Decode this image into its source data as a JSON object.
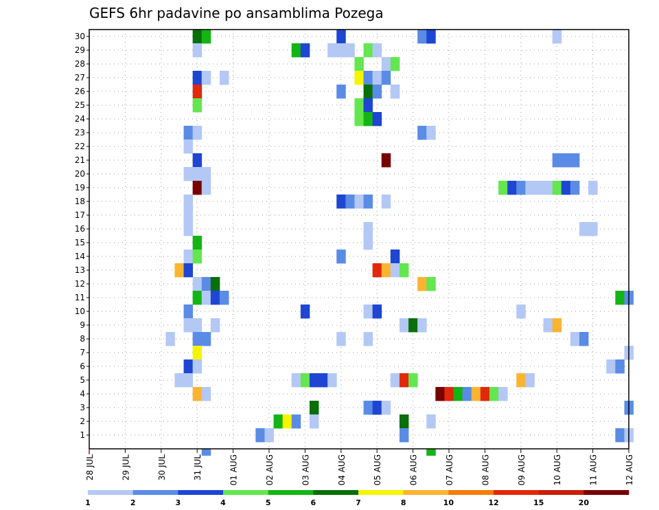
{
  "chart_data": {
    "type": "heatmap",
    "title": "GEFS 6hr padavine po ansamblima Pozega",
    "xlabel": "",
    "ylabel": "",
    "x_ticks": [
      "28 JUL",
      "29 JUL",
      "30 JUL",
      "31 JUL",
      "01 AUG",
      "02 AUG",
      "03 AUG",
      "04 AUG",
      "05 AUG",
      "06 AUG",
      "07 AUG",
      "08 AUG",
      "09 AUG",
      "10 AUG",
      "11 AUG",
      "12 AUG"
    ],
    "x_unit": "6-hour step from 28 JUL 00Z",
    "y_ticks": [
      1,
      2,
      3,
      4,
      5,
      6,
      7,
      8,
      9,
      10,
      11,
      12,
      13,
      14,
      15,
      16,
      17,
      18,
      19,
      20,
      21,
      22,
      23,
      24,
      25,
      26,
      27,
      28,
      29,
      30
    ],
    "xlim": [
      0,
      60
    ],
    "ylim": [
      0,
      30.5
    ],
    "grid": true,
    "legend": {
      "placement": "bottom",
      "ticks": [
        "1",
        "2",
        "3",
        "4",
        "5",
        "6",
        "7",
        "8",
        "10",
        "12",
        "15",
        "20"
      ],
      "colors": [
        "#b4c8f5",
        "#5a8ce6",
        "#1e46d2",
        "#64e650",
        "#14b414",
        "#0a6e0a",
        "#f5f500",
        "#fab432",
        "#f57d0a",
        "#e1280a",
        "#c81e0a",
        "#780000"
      ]
    },
    "cells": [
      {
        "member": 30,
        "step": 12,
        "class": 5
      },
      {
        "member": 30,
        "step": 13,
        "class": 4
      },
      {
        "member": 30,
        "step": 28,
        "class": 2
      },
      {
        "member": 30,
        "step": 37,
        "class": 1
      },
      {
        "member": 30,
        "step": 38,
        "class": 2
      },
      {
        "member": 30,
        "step": 52,
        "class": 0
      },
      {
        "member": 29,
        "step": 12,
        "class": 0
      },
      {
        "member": 29,
        "step": 23,
        "class": 4
      },
      {
        "member": 29,
        "step": 24,
        "class": 2
      },
      {
        "member": 29,
        "step": 27,
        "class": 0
      },
      {
        "member": 29,
        "step": 28,
        "class": 0
      },
      {
        "member": 29,
        "step": 29,
        "class": 0
      },
      {
        "member": 29,
        "step": 31,
        "class": 3
      },
      {
        "member": 29,
        "step": 32,
        "class": 0
      },
      {
        "member": 28,
        "step": 30,
        "class": 3
      },
      {
        "member": 28,
        "step": 33,
        "class": 0
      },
      {
        "member": 28,
        "step": 34,
        "class": 3
      },
      {
        "member": 27,
        "step": 12,
        "class": 2
      },
      {
        "member": 27,
        "step": 13,
        "class": 0
      },
      {
        "member": 27,
        "step": 15,
        "class": 0
      },
      {
        "member": 27,
        "step": 30,
        "class": 6
      },
      {
        "member": 27,
        "step": 31,
        "class": 1
      },
      {
        "member": 27,
        "step": 32,
        "class": 0
      },
      {
        "member": 27,
        "step": 33,
        "class": 1
      },
      {
        "member": 26,
        "step": 12,
        "class": 9
      },
      {
        "member": 26,
        "step": 28,
        "class": 1
      },
      {
        "member": 26,
        "step": 31,
        "class": 5
      },
      {
        "member": 26,
        "step": 32,
        "class": 1
      },
      {
        "member": 26,
        "step": 34,
        "class": 0
      },
      {
        "member": 25,
        "step": 12,
        "class": 3
      },
      {
        "member": 25,
        "step": 30,
        "class": 3
      },
      {
        "member": 25,
        "step": 31,
        "class": 2
      },
      {
        "member": 24,
        "step": 30,
        "class": 3
      },
      {
        "member": 24,
        "step": 31,
        "class": 4
      },
      {
        "member": 24,
        "step": 32,
        "class": 2
      },
      {
        "member": 23,
        "step": 11,
        "class": 1
      },
      {
        "member": 23,
        "step": 12,
        "class": 0
      },
      {
        "member": 23,
        "step": 37,
        "class": 1
      },
      {
        "member": 23,
        "step": 38,
        "class": 0
      },
      {
        "member": 22,
        "step": 11,
        "class": 0
      },
      {
        "member": 21,
        "step": 12,
        "class": 2
      },
      {
        "member": 21,
        "step": 33,
        "class": 11
      },
      {
        "member": 21,
        "step": 52,
        "class": 1
      },
      {
        "member": 21,
        "step": 53,
        "class": 1
      },
      {
        "member": 21,
        "step": 54,
        "class": 1
      },
      {
        "member": 20,
        "step": 11,
        "class": 0
      },
      {
        "member": 20,
        "step": 12,
        "class": 0
      },
      {
        "member": 20,
        "step": 13,
        "class": 0
      },
      {
        "member": 19,
        "step": 12,
        "class": 11
      },
      {
        "member": 19,
        "step": 13,
        "class": 0
      },
      {
        "member": 19,
        "step": 46,
        "class": 3
      },
      {
        "member": 19,
        "step": 47,
        "class": 2
      },
      {
        "member": 19,
        "step": 48,
        "class": 1
      },
      {
        "member": 19,
        "step": 49,
        "class": 0
      },
      {
        "member": 19,
        "step": 50,
        "class": 0
      },
      {
        "member": 19,
        "step": 51,
        "class": 0
      },
      {
        "member": 19,
        "step": 52,
        "class": 3
      },
      {
        "member": 19,
        "step": 53,
        "class": 2
      },
      {
        "member": 19,
        "step": 54,
        "class": 1
      },
      {
        "member": 19,
        "step": 56,
        "class": 0
      },
      {
        "member": 18,
        "step": 11,
        "class": 0
      },
      {
        "member": 18,
        "step": 28,
        "class": 2
      },
      {
        "member": 18,
        "step": 29,
        "class": 1
      },
      {
        "member": 18,
        "step": 30,
        "class": 0
      },
      {
        "member": 18,
        "step": 31,
        "class": 1
      },
      {
        "member": 18,
        "step": 33,
        "class": 0
      },
      {
        "member": 17,
        "step": 11,
        "class": 0
      },
      {
        "member": 16,
        "step": 11,
        "class": 0
      },
      {
        "member": 16,
        "step": 31,
        "class": 0
      },
      {
        "member": 16,
        "step": 55,
        "class": 0
      },
      {
        "member": 16,
        "step": 56,
        "class": 0
      },
      {
        "member": 15,
        "step": 12,
        "class": 4
      },
      {
        "member": 15,
        "step": 31,
        "class": 0
      },
      {
        "member": 14,
        "step": 11,
        "class": 0
      },
      {
        "member": 14,
        "step": 12,
        "class": 3
      },
      {
        "member": 14,
        "step": 28,
        "class": 1
      },
      {
        "member": 14,
        "step": 34,
        "class": 2
      },
      {
        "member": 13,
        "step": 10,
        "class": 7
      },
      {
        "member": 13,
        "step": 11,
        "class": 2
      },
      {
        "member": 13,
        "step": 32,
        "class": 9
      },
      {
        "member": 13,
        "step": 33,
        "class": 7
      },
      {
        "member": 13,
        "step": 34,
        "class": 0
      },
      {
        "member": 13,
        "step": 35,
        "class": 3
      },
      {
        "member": 12,
        "step": 12,
        "class": 0
      },
      {
        "member": 12,
        "step": 13,
        "class": 1
      },
      {
        "member": 12,
        "step": 14,
        "class": 5
      },
      {
        "member": 12,
        "step": 37,
        "class": 7
      },
      {
        "member": 12,
        "step": 38,
        "class": 3
      },
      {
        "member": 11,
        "step": 12,
        "class": 4
      },
      {
        "member": 11,
        "step": 13,
        "class": 0
      },
      {
        "member": 11,
        "step": 14,
        "class": 2
      },
      {
        "member": 11,
        "step": 15,
        "class": 1
      },
      {
        "member": 11,
        "step": 59,
        "class": 4
      },
      {
        "member": 11,
        "step": 60,
        "class": 1
      },
      {
        "member": 10,
        "step": 11,
        "class": 1
      },
      {
        "member": 10,
        "step": 24,
        "class": 2
      },
      {
        "member": 10,
        "step": 31,
        "class": 0
      },
      {
        "member": 10,
        "step": 32,
        "class": 2
      },
      {
        "member": 10,
        "step": 48,
        "class": 0
      },
      {
        "member": 9,
        "step": 11,
        "class": 0
      },
      {
        "member": 9,
        "step": 12,
        "class": 0
      },
      {
        "member": 9,
        "step": 14,
        "class": 0
      },
      {
        "member": 9,
        "step": 35,
        "class": 0
      },
      {
        "member": 9,
        "step": 36,
        "class": 5
      },
      {
        "member": 9,
        "step": 37,
        "class": 0
      },
      {
        "member": 9,
        "step": 51,
        "class": 0
      },
      {
        "member": 9,
        "step": 52,
        "class": 7
      },
      {
        "member": 8,
        "step": 9,
        "class": 0
      },
      {
        "member": 8,
        "step": 12,
        "class": 1
      },
      {
        "member": 8,
        "step": 13,
        "class": 1
      },
      {
        "member": 8,
        "step": 28,
        "class": 0
      },
      {
        "member": 8,
        "step": 31,
        "class": 0
      },
      {
        "member": 8,
        "step": 54,
        "class": 0
      },
      {
        "member": 8,
        "step": 55,
        "class": 1
      },
      {
        "member": 7,
        "step": 12,
        "class": 6
      },
      {
        "member": 7,
        "step": 60,
        "class": 0
      },
      {
        "member": 6,
        "step": 11,
        "class": 2
      },
      {
        "member": 6,
        "step": 12,
        "class": 0
      },
      {
        "member": 6,
        "step": 58,
        "class": 0
      },
      {
        "member": 6,
        "step": 59,
        "class": 1
      },
      {
        "member": 5,
        "step": 10,
        "class": 0
      },
      {
        "member": 5,
        "step": 11,
        "class": 0
      },
      {
        "member": 5,
        "step": 23,
        "class": 0
      },
      {
        "member": 5,
        "step": 24,
        "class": 3
      },
      {
        "member": 5,
        "step": 25,
        "class": 2
      },
      {
        "member": 5,
        "step": 26,
        "class": 2
      },
      {
        "member": 5,
        "step": 27,
        "class": 0
      },
      {
        "member": 5,
        "step": 34,
        "class": 0
      },
      {
        "member": 5,
        "step": 35,
        "class": 9
      },
      {
        "member": 5,
        "step": 36,
        "class": 3
      },
      {
        "member": 5,
        "step": 48,
        "class": 7
      },
      {
        "member": 5,
        "step": 49,
        "class": 0
      },
      {
        "member": 4,
        "step": 12,
        "class": 7
      },
      {
        "member": 4,
        "step": 13,
        "class": 0
      },
      {
        "member": 4,
        "step": 39,
        "class": 11
      },
      {
        "member": 4,
        "step": 40,
        "class": 9
      },
      {
        "member": 4,
        "step": 41,
        "class": 4
      },
      {
        "member": 4,
        "step": 42,
        "class": 1
      },
      {
        "member": 4,
        "step": 43,
        "class": 7
      },
      {
        "member": 4,
        "step": 44,
        "class": 9
      },
      {
        "member": 4,
        "step": 45,
        "class": 3
      },
      {
        "member": 4,
        "step": 46,
        "class": 0
      },
      {
        "member": 3,
        "step": 25,
        "class": 5
      },
      {
        "member": 3,
        "step": 31,
        "class": 1
      },
      {
        "member": 3,
        "step": 32,
        "class": 2
      },
      {
        "member": 3,
        "step": 33,
        "class": 0
      },
      {
        "member": 3,
        "step": 60,
        "class": 1
      },
      {
        "member": 2,
        "step": 21,
        "class": 4
      },
      {
        "member": 2,
        "step": 22,
        "class": 6
      },
      {
        "member": 2,
        "step": 23,
        "class": 1
      },
      {
        "member": 2,
        "step": 25,
        "class": 0
      },
      {
        "member": 2,
        "step": 35,
        "class": 5
      },
      {
        "member": 2,
        "step": 38,
        "class": 0
      },
      {
        "member": 1,
        "step": 19,
        "class": 1
      },
      {
        "member": 1,
        "step": 20,
        "class": 0
      },
      {
        "member": 1,
        "step": 35,
        "class": 1
      },
      {
        "member": 1,
        "step": 59,
        "class": 1
      },
      {
        "member": 1,
        "step": 60,
        "class": 0
      }
    ],
    "edge_marks": [
      {
        "step": 13,
        "class": 1
      },
      {
        "step": 38,
        "class": 4
      }
    ]
  }
}
